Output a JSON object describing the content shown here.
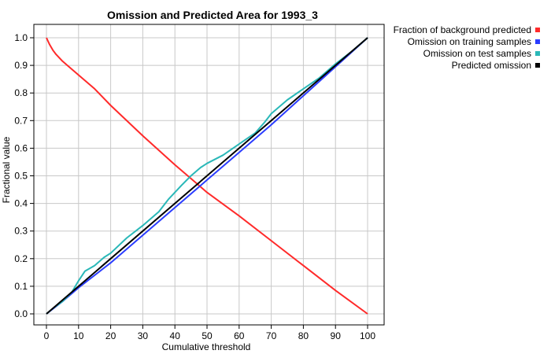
{
  "chart_data": {
    "type": "line",
    "title": "Omission and Predicted Area for 1993_3",
    "xlabel": "Cumulative threshold",
    "ylabel": "Fractional value",
    "xlim": [
      0,
      100
    ],
    "ylim": [
      0,
      1
    ],
    "xticks": [
      0,
      10,
      20,
      30,
      40,
      50,
      60,
      70,
      80,
      90,
      100
    ],
    "yticks": [
      0.0,
      0.1,
      0.2,
      0.3,
      0.4,
      0.5,
      0.6,
      0.7,
      0.8,
      0.9,
      1.0
    ],
    "ytick_labels": [
      "0.0",
      "0.1",
      "0.2",
      "0.3",
      "0.4",
      "0.5",
      "0.6",
      "0.7",
      "0.8",
      "0.9",
      "1.0"
    ],
    "grid": true,
    "legend_position": "outside-top-right",
    "series": [
      {
        "name": "Fraction of background predicted",
        "color": "#ff2a2a",
        "x": [
          0,
          1,
          2,
          3,
          5,
          7,
          10,
          15,
          20,
          30,
          40,
          47,
          50,
          60,
          70,
          80,
          90,
          100
        ],
        "y": [
          1.0,
          0.975,
          0.955,
          0.94,
          0.915,
          0.895,
          0.865,
          0.815,
          0.755,
          0.645,
          0.54,
          0.47,
          0.44,
          0.355,
          0.265,
          0.175,
          0.085,
          0.0
        ]
      },
      {
        "name": "Omission on training samples",
        "color": "#2a3cff",
        "x": [
          0,
          5,
          10,
          20,
          30,
          40,
          50,
          60,
          70,
          80,
          90,
          100
        ],
        "y": [
          0.0,
          0.045,
          0.095,
          0.185,
          0.285,
          0.385,
          0.485,
          0.585,
          0.685,
          0.79,
          0.895,
          1.0
        ]
      },
      {
        "name": "Omission on test samples",
        "color": "#2ab8b8",
        "x": [
          0,
          2,
          5,
          8,
          10,
          12,
          15,
          18,
          20,
          25,
          30,
          35,
          38,
          40,
          42,
          45,
          48,
          50,
          55,
          60,
          65,
          68,
          70,
          75,
          80,
          85,
          90,
          95,
          100
        ],
        "y": [
          0.0,
          0.02,
          0.045,
          0.08,
          0.12,
          0.155,
          0.175,
          0.205,
          0.22,
          0.275,
          0.32,
          0.37,
          0.415,
          0.44,
          0.465,
          0.5,
          0.53,
          0.545,
          0.575,
          0.615,
          0.655,
          0.695,
          0.725,
          0.775,
          0.815,
          0.855,
          0.905,
          0.95,
          1.0
        ]
      },
      {
        "name": "Predicted omission",
        "color": "#000000",
        "x": [
          0,
          100
        ],
        "y": [
          0.0,
          1.0
        ]
      }
    ]
  }
}
